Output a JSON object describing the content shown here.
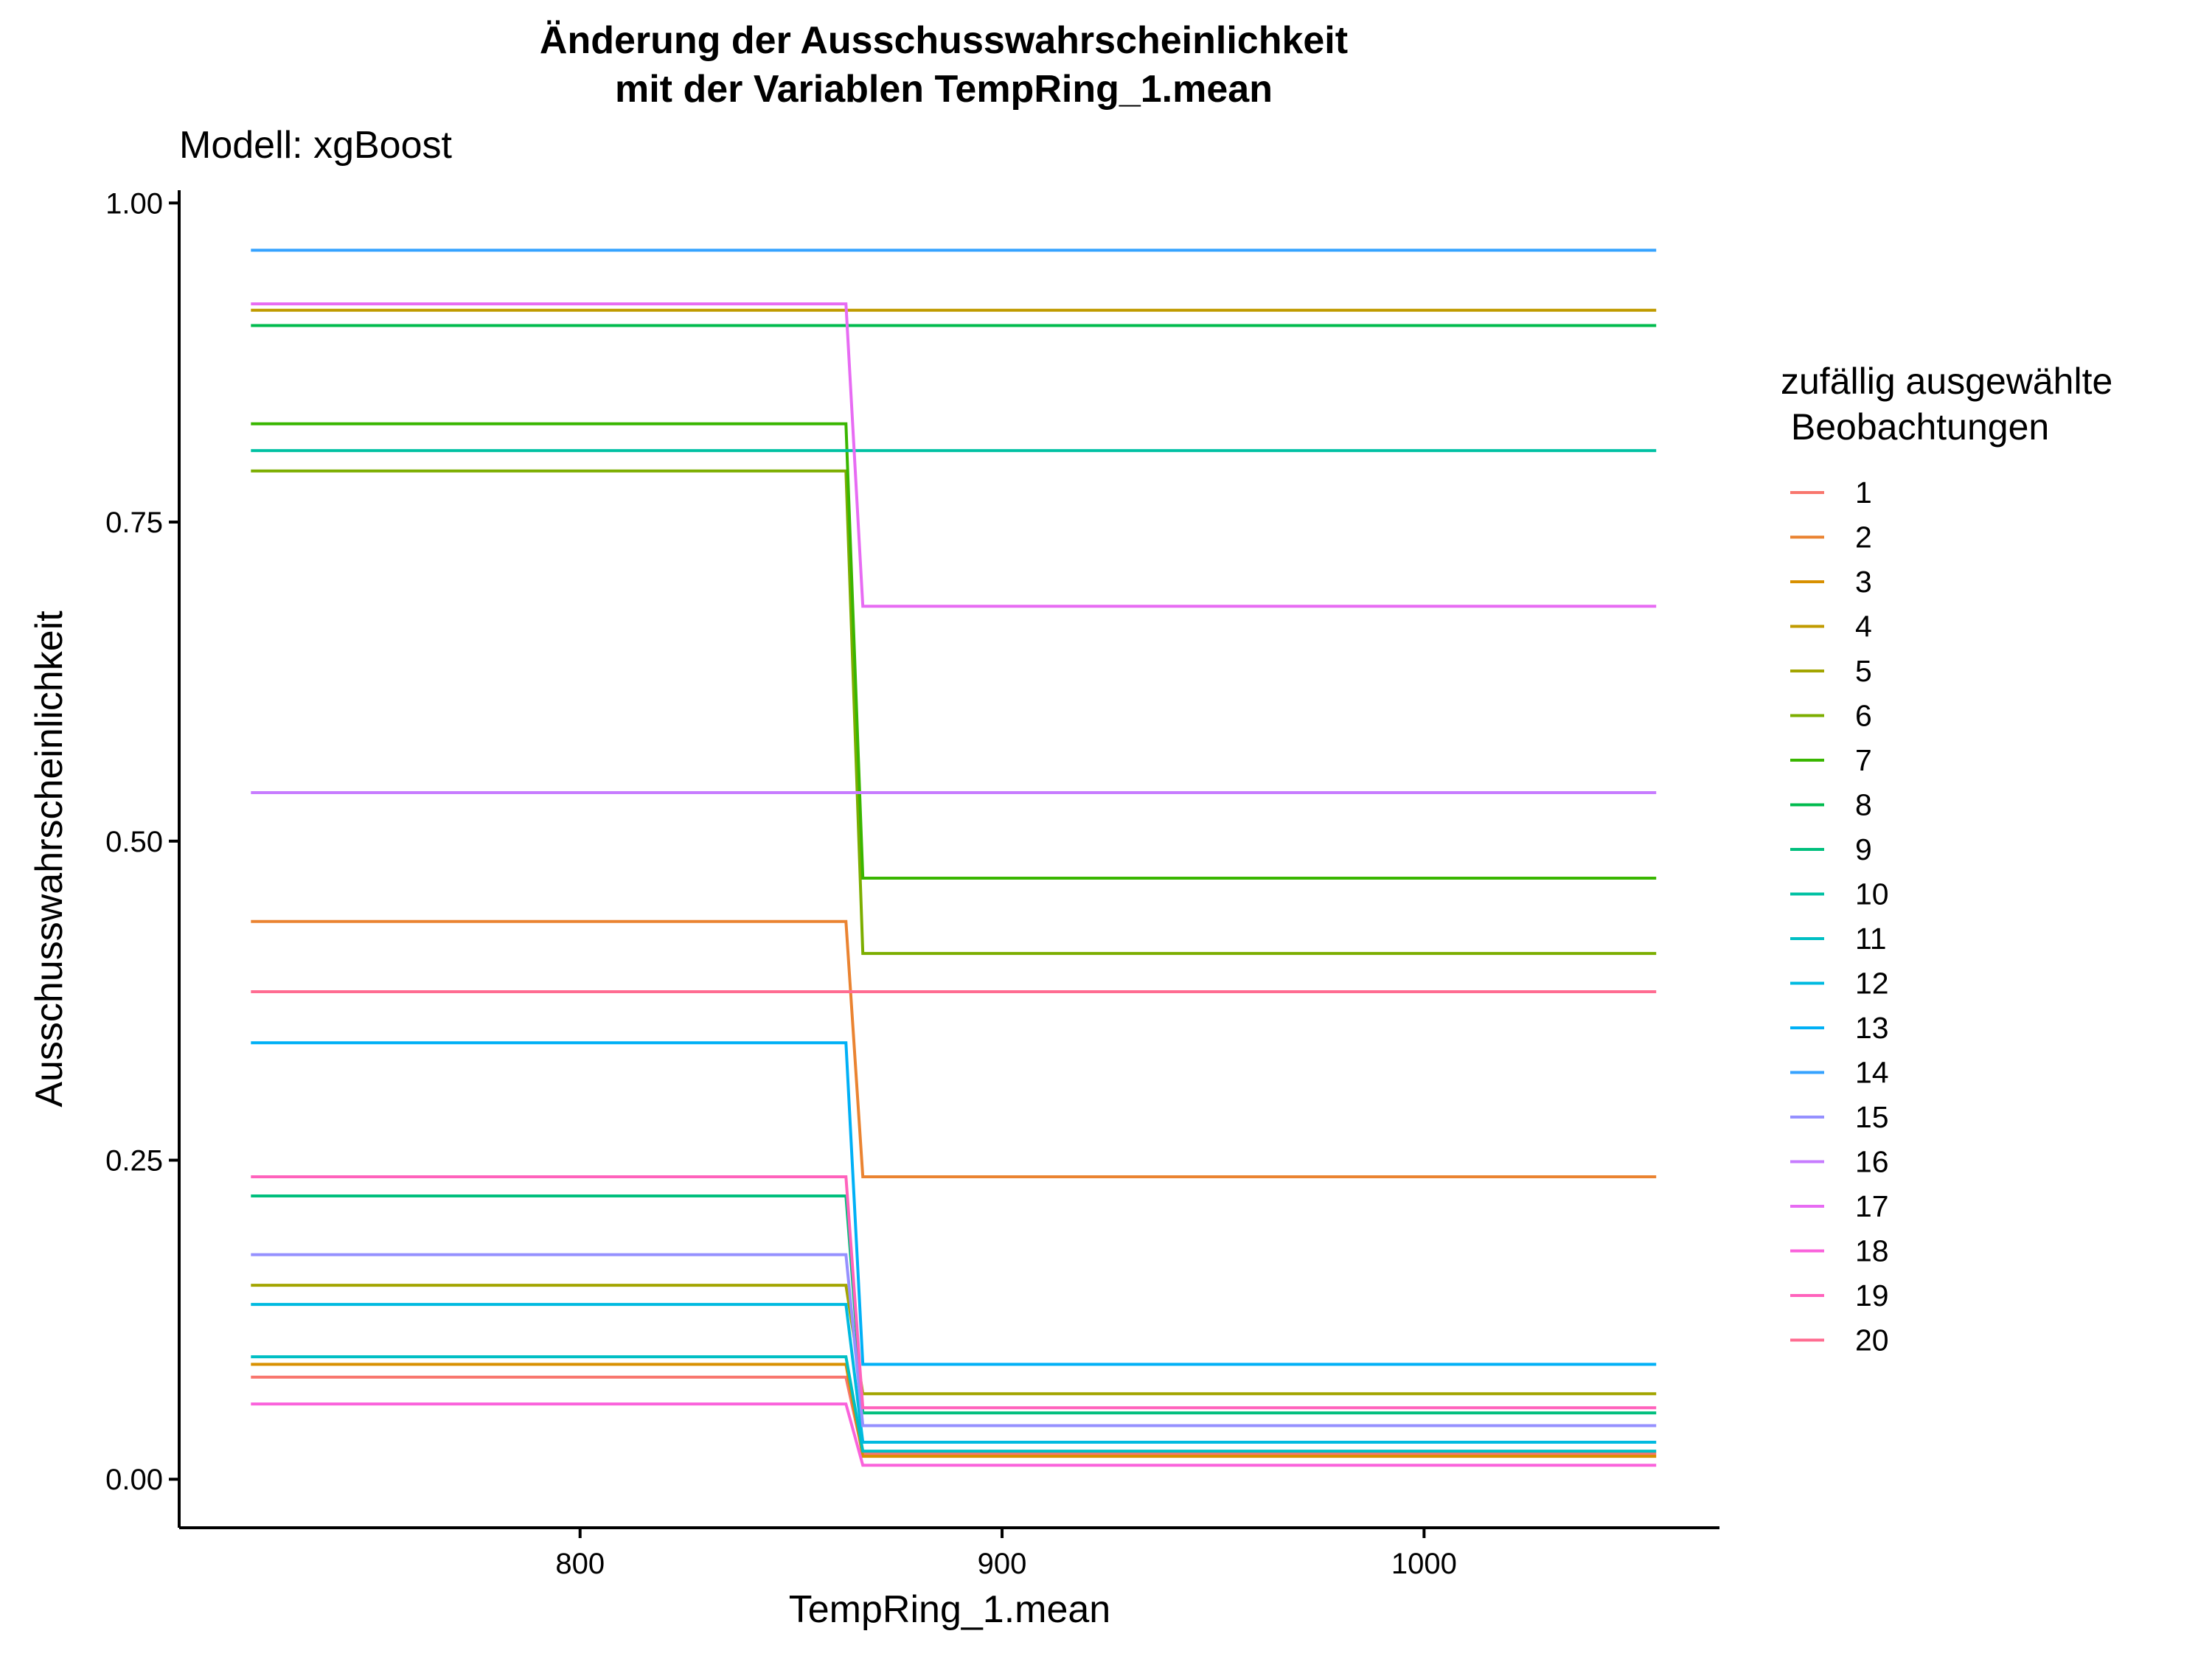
{
  "chart_data": {
    "type": "line",
    "title_line1": "Änderung der Ausschusswahrscheinlichkeit",
    "title_line2": "mit der Variablen TempRing_1.mean",
    "subtitle": "Modell: xgBoost",
    "xlabel": "TempRing_1.mean",
    "ylabel": "Ausschusswahrscheinlichkeit",
    "xlim": [
      705,
      1070
    ],
    "ylim": [
      -0.038,
      1.01
    ],
    "x_ticks": [
      800,
      900,
      1000
    ],
    "x_tick_labels": [
      "800",
      "900",
      "1000"
    ],
    "y_ticks": [
      0,
      0.25,
      0.5,
      0.75,
      1.0
    ],
    "y_tick_labels": [
      "0.00",
      "0.25",
      "0.50",
      "0.75",
      "1.00"
    ],
    "x": [
      722,
      863,
      867,
      1055
    ],
    "legend_title_line1": "zufällig ausgewählte",
    "legend_title_line2": " Beobachtungen",
    "legend_position": "right",
    "grid": false,
    "series": [
      {
        "name": "1",
        "color": "#F8766D",
        "values": [
          0.08,
          0.08,
          0.02,
          0.02
        ]
      },
      {
        "name": "2",
        "color": "#EA8331",
        "values": [
          0.437,
          0.437,
          0.237,
          0.237
        ]
      },
      {
        "name": "3",
        "color": "#D89000",
        "values": [
          0.09,
          0.09,
          0.018,
          0.018
        ]
      },
      {
        "name": "4",
        "color": "#C09B00",
        "values": [
          0.916,
          0.916,
          0.916,
          0.916
        ]
      },
      {
        "name": "5",
        "color": "#A3A500",
        "values": [
          0.152,
          0.152,
          0.067,
          0.067
        ]
      },
      {
        "name": "6",
        "color": "#7CAE00",
        "values": [
          0.79,
          0.79,
          0.412,
          0.412
        ]
      },
      {
        "name": "7",
        "color": "#39B600",
        "values": [
          0.827,
          0.827,
          0.471,
          0.471
        ]
      },
      {
        "name": "8",
        "color": "#00BB4E",
        "values": [
          0.904,
          0.904,
          0.904,
          0.904
        ]
      },
      {
        "name": "9",
        "color": "#00BF7D",
        "values": [
          0.222,
          0.222,
          0.052,
          0.052
        ]
      },
      {
        "name": "10",
        "color": "#00C1A3",
        "values": [
          0.806,
          0.806,
          0.806,
          0.806
        ]
      },
      {
        "name": "11",
        "color": "#00BFC4",
        "values": [
          0.096,
          0.096,
          0.022,
          0.022
        ]
      },
      {
        "name": "12",
        "color": "#00BAE0",
        "values": [
          0.137,
          0.137,
          0.029,
          0.029
        ]
      },
      {
        "name": "13",
        "color": "#00B0F6",
        "values": [
          0.342,
          0.342,
          0.09,
          0.09
        ]
      },
      {
        "name": "14",
        "color": "#35A2FF",
        "values": [
          0.963,
          0.963,
          0.963,
          0.963
        ]
      },
      {
        "name": "15",
        "color": "#9590FF",
        "values": [
          0.176,
          0.176,
          0.042,
          0.042
        ]
      },
      {
        "name": "16",
        "color": "#C77CFF",
        "values": [
          0.538,
          0.538,
          0.538,
          0.538
        ]
      },
      {
        "name": "17",
        "color": "#E76BF3",
        "values": [
          0.921,
          0.921,
          0.684,
          0.684
        ]
      },
      {
        "name": "18",
        "color": "#FA62DB",
        "values": [
          0.059,
          0.059,
          0.011,
          0.011
        ]
      },
      {
        "name": "19",
        "color": "#FF62BC",
        "values": [
          0.237,
          0.237,
          0.056,
          0.056
        ]
      },
      {
        "name": "20",
        "color": "#FF6C91",
        "values": [
          0.382,
          0.382,
          0.382,
          0.382
        ]
      }
    ]
  }
}
